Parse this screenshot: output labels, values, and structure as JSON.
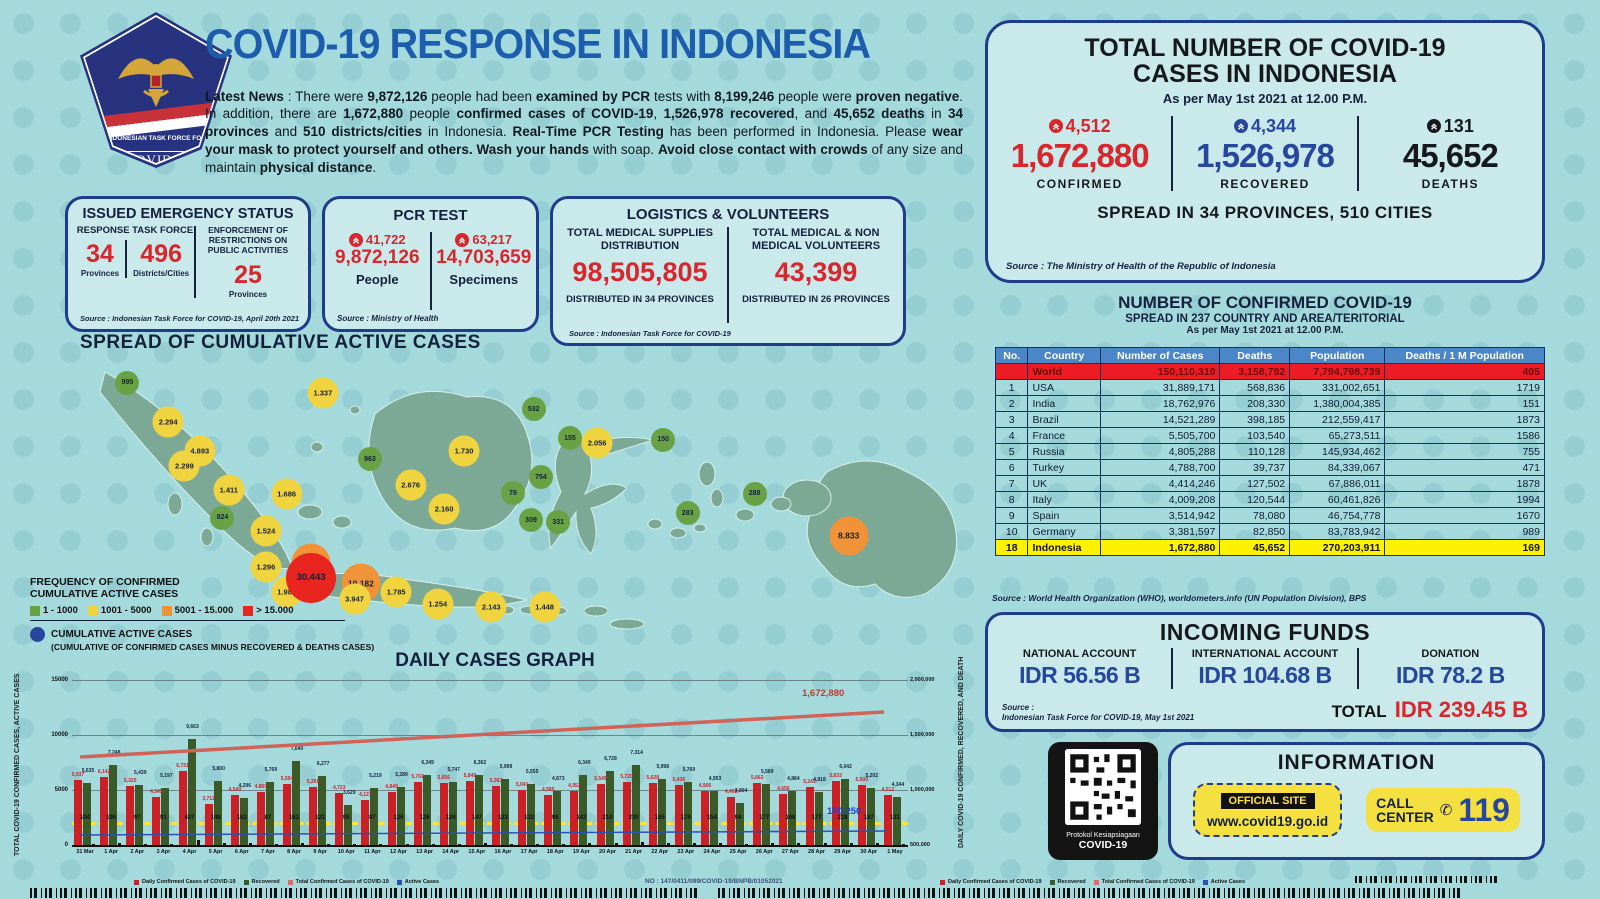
{
  "header": {
    "logo": {
      "org_line": "INDONESIAN TASK FORCE FOR",
      "covid": "COVID-19"
    },
    "title": "COVID-19 RESPONSE IN INDONESIA",
    "news": [
      {
        "t": "Latest News",
        "b": 1
      },
      {
        "t": " : There were ",
        "b": 0
      },
      {
        "t": "9,872,126",
        "b": 1
      },
      {
        "t": " people had been ",
        "b": 0
      },
      {
        "t": "examined by PCR",
        "b": 1
      },
      {
        "t": " tests with ",
        "b": 0
      },
      {
        "t": "8,199,246",
        "b": 1
      },
      {
        "t": " people were ",
        "b": 0
      },
      {
        "t": "proven negative",
        "b": 1
      },
      {
        "t": ". In addition, there are ",
        "b": 0
      },
      {
        "t": "1,672,880",
        "b": 1
      },
      {
        "t": " people ",
        "b": 0
      },
      {
        "t": "confirmed cases of COVID-19",
        "b": 1
      },
      {
        "t": ", ",
        "b": 0
      },
      {
        "t": "1,526,978",
        "b": 1
      },
      {
        "t": " ",
        "b": 0
      },
      {
        "t": "recovered",
        "b": 1
      },
      {
        "t": ", and ",
        "b": 0
      },
      {
        "t": "45,652 deaths",
        "b": 1
      },
      {
        "t": " in ",
        "b": 0
      },
      {
        "t": "34 provinces",
        "b": 1
      },
      {
        "t": " and ",
        "b": 0
      },
      {
        "t": "510 districts/cities",
        "b": 1
      },
      {
        "t": " in Indonesia. ",
        "b": 0
      },
      {
        "t": "Real-Time PCR Testing",
        "b": 1
      },
      {
        "t": " has been performed in Indonesia. Please ",
        "b": 0
      },
      {
        "t": "wear your mask to protect yourself and others. Wash your hands",
        "b": 1
      },
      {
        "t": " with soap. ",
        "b": 0
      },
      {
        "t": "Avoid close contact with crowds",
        "b": 1
      },
      {
        "t": " of any size and maintain ",
        "b": 0
      },
      {
        "t": "physical distance",
        "b": 1
      },
      {
        "t": ".",
        "b": 0
      }
    ]
  },
  "emergency_box": {
    "title": "ISSUED EMERGENCY STATUS",
    "left_header": "RESPONSE TASK FORCE",
    "stat1_value": "34",
    "stat1_label": "Provinces",
    "stat2_value": "496",
    "stat2_label": "Districts/Cities",
    "right_header": "ENFORCEMENT OF RESTRICTIONS ON PUBLIC ACTIVITIES",
    "stat3_value": "25",
    "stat3_label": "Provinces",
    "source": "Source : Indonesian Task Force for COVID-19, April 20th 2021"
  },
  "pcr_box": {
    "title": "PCR TEST",
    "left_delta": "41,722",
    "left_value": "9,872,126",
    "left_label": "People",
    "right_delta": "63,217",
    "right_value": "14,703,659",
    "right_label": "Specimens",
    "source": "Source : Ministry of Health"
  },
  "logistics_box": {
    "title": "LOGISTICS & VOLUNTEERS",
    "left_header": "TOTAL MEDICAL SUPPLIES DISTRIBUTION",
    "left_value": "98,505,805",
    "left_sub": "DISTRIBUTED IN 34 PROVINCES",
    "right_header": "TOTAL MEDICAL & NON MEDICAL VOLUNTEERS",
    "right_value": "43,399",
    "right_sub": "DISTRIBUTED IN 26 PROVINCES",
    "source": "Source : Indonesian Task Force for COVID-19"
  },
  "map": {
    "title": "SPREAD OF CUMULATIVE ACTIVE CASES",
    "legend_title": "FREQUENCY OF CONFIRMED CUMULATIVE ACTIVE CASES",
    "legend_items": [
      {
        "label": "1 - 1000",
        "color": "#69a244"
      },
      {
        "label": "1001 - 5000",
        "color": "#f0d43f"
      },
      {
        "label": "5001 - 15.000",
        "color": "#f09338"
      },
      {
        "label": "> 15.000",
        "color": "#e8251f"
      }
    ],
    "cumulative_label": "CUMULATIVE ACTIVE CASES",
    "cumulative_sub": "(CUMULATIVE OF CONFIRMED CASES MINUS RECOVERED & DEATHS CASES)",
    "bubbles": [
      {
        "v": "995",
        "x": 8.0,
        "y": 10.3,
        "c": "g"
      },
      {
        "v": "2.294",
        "x": 12.5,
        "y": 23.3,
        "c": "y"
      },
      {
        "v": "1.337",
        "x": 29.6,
        "y": 13.7,
        "c": "y"
      },
      {
        "v": "4.893",
        "x": 16.0,
        "y": 33.0,
        "c": "y"
      },
      {
        "v": "2.299",
        "x": 14.3,
        "y": 38.0,
        "c": "y"
      },
      {
        "v": "532",
        "x": 52.9,
        "y": 19.0,
        "c": "g"
      },
      {
        "v": "963",
        "x": 34.8,
        "y": 35.7,
        "c": "g"
      },
      {
        "v": "1.730",
        "x": 45.2,
        "y": 33.0,
        "c": "y"
      },
      {
        "v": "1.411",
        "x": 19.2,
        "y": 46.0,
        "c": "y"
      },
      {
        "v": "1.686",
        "x": 25.6,
        "y": 47.3,
        "c": "y"
      },
      {
        "v": "2.676",
        "x": 39.3,
        "y": 44.3,
        "c": "y"
      },
      {
        "v": "2.160",
        "x": 43.0,
        "y": 52.3,
        "c": "y"
      },
      {
        "v": "155",
        "x": 56.9,
        "y": 28.7,
        "c": "g"
      },
      {
        "v": "2.056",
        "x": 59.9,
        "y": 30.3,
        "c": "y"
      },
      {
        "v": "150",
        "x": 67.2,
        "y": 29.3,
        "c": "g"
      },
      {
        "v": "754",
        "x": 53.7,
        "y": 41.7,
        "c": "g"
      },
      {
        "v": "79",
        "x": 50.6,
        "y": 47.0,
        "c": "g"
      },
      {
        "v": "288",
        "x": 77.3,
        "y": 47.3,
        "c": "g"
      },
      {
        "v": "824",
        "x": 18.5,
        "y": 55.3,
        "c": "g"
      },
      {
        "v": "1.524",
        "x": 23.3,
        "y": 59.7,
        "c": "y"
      },
      {
        "v": "309",
        "x": 52.6,
        "y": 56.0,
        "c": "g"
      },
      {
        "v": "331",
        "x": 55.6,
        "y": 56.7,
        "c": "g"
      },
      {
        "v": "283",
        "x": 69.9,
        "y": 53.7,
        "c": "g"
      },
      {
        "v": "1.296",
        "x": 23.3,
        "y": 71.7,
        "c": "y"
      },
      {
        "v": "8.833",
        "x": 87.7,
        "y": 61.3,
        "c": "o"
      },
      {
        "v": "1.986",
        "x": 25.6,
        "y": 80.0,
        "c": "y"
      },
      {
        "v": "7.204",
        "x": 28.3,
        "y": 70.3,
        "c": "o"
      },
      {
        "v": "30.443",
        "x": 28.3,
        "y": 75.3,
        "c": "r"
      },
      {
        "v": "10.182",
        "x": 33.8,
        "y": 77.0,
        "c": "o"
      },
      {
        "v": "3.947",
        "x": 33.1,
        "y": 82.3,
        "c": "y"
      },
      {
        "v": "1.785",
        "x": 37.7,
        "y": 80.0,
        "c": "y"
      },
      {
        "v": "1.254",
        "x": 42.3,
        "y": 84.0,
        "c": "y"
      },
      {
        "v": "2.143",
        "x": 48.2,
        "y": 85.0,
        "c": "y"
      },
      {
        "v": "1.448",
        "x": 54.1,
        "y": 85.0,
        "c": "y"
      }
    ]
  },
  "chart_data": {
    "type": "bar",
    "title": "DAILY CASES GRAPH",
    "dates": [
      "31 Mar",
      "1 Apr",
      "2 Apr",
      "3 Apr",
      "4 Apr",
      "5 Apr",
      "6 Apr",
      "7 Apr",
      "8 Apr",
      "9 Apr",
      "10 Apr",
      "11 Apr",
      "12 Apr",
      "13 Apr",
      "14 Apr",
      "15 Apr",
      "16 Apr",
      "17 Apr",
      "18 Apr",
      "19 Apr",
      "20 Apr",
      "21 Apr",
      "22 Apr",
      "23 Apr",
      "24 Apr",
      "25 Apr",
      "26 Apr",
      "27 Apr",
      "28 Apr",
      "29 Apr",
      "30 Apr",
      "1 May"
    ],
    "series": [
      {
        "name": "Daily Confirmed Cases of COVID-19",
        "color": "#cc2027",
        "values": [
          5937,
          6142,
          5325,
          4345,
          6731,
          3712,
          4549,
          4860,
          5504,
          5265,
          4723,
          4127,
          4849,
          5702,
          5656,
          5849,
          5363,
          5041,
          4585,
          4952,
          5549,
          5720,
          5628,
          5436,
          4906,
          4402,
          5662,
          4656,
          5241,
          5833,
          5500,
          4512
        ]
      },
      {
        "name": "Recovered",
        "color": "#3a5a28",
        "values": [
          5635,
          7248,
          5439,
          5197,
          9663,
          5800,
          4296,
          5769,
          7640,
          6277,
          3629,
          5219,
          5289,
          6349,
          5747,
          6362,
          5999,
          5555,
          4873,
          6349,
          6728,
          7314,
          5998,
          5769,
          4953,
          3804,
          5589,
          4884,
          4818,
          6042,
          5202,
          4344
        ]
      },
      {
        "name": "Deaths",
        "color": "#111111",
        "values": [
          104,
          196,
          97,
          91,
          427,
          146,
          162,
          87,
          163,
          121,
          95,
          87,
          126,
          126,
          124,
          147,
          123,
          132,
          96,
          143,
          210,
          230,
          165,
          174,
          154,
          94,
          177,
          168,
          177,
          218,
          187,
          131
        ]
      }
    ],
    "left_ticks": [
      "15000",
      "10000",
      "5000",
      "0"
    ],
    "right_ticks": [
      "2,000,000",
      "1,500,000",
      "1,000,000",
      "500,000"
    ],
    "ylim": [
      0,
      15000
    ],
    "cumulative_line_label": "1,672,880",
    "active_line_label": "100,250",
    "left_axis_caption": "TOTAL COVID-19 CONFIRMED CASES, ACTIVE CASES",
    "right_axis_caption": "DAILY COVID-19 CONFIRMED, RECOVERED, AND DEATH"
  },
  "totals": {
    "title_line1": "TOTAL NUMBER OF COVID-19",
    "title_line2": "CASES IN INDONESIA",
    "subtitle": "As per May 1st 2021 at 12.00 P.M.",
    "stats": [
      {
        "delta": "4,512",
        "value": "1,672,880",
        "label": "CONFIRMED",
        "color": "#d8262c"
      },
      {
        "delta": "4,344",
        "value": "1,526,978",
        "label": "RECOVERED",
        "color": "#27479e"
      },
      {
        "delta": "131",
        "value": "45,652",
        "label": "DEATHS",
        "color": "#16181d"
      }
    ],
    "spread": "SPREAD IN 34 PROVINCES, 510 CITIES",
    "source": "Source : The Ministry of Health of the Republic of Indonesia"
  },
  "world_table": {
    "title": "NUMBER OF CONFIRMED COVID-19",
    "subtitle": "SPREAD IN 237 COUNTRY AND AREA/TERITORIAL",
    "asof": "As per May 1st 2021 at 12.00 P.M.",
    "headers": [
      "No.",
      "Country",
      "Number of Cases",
      "Deaths",
      "Population",
      "Deaths / 1 M Population"
    ],
    "rows": [
      {
        "no": "",
        "country": "World",
        "cases": "150,110,310",
        "deaths": "3,158,792",
        "population": "7,794,798,739",
        "dpm": "405",
        "cls": "world"
      },
      {
        "no": "1",
        "country": "USA",
        "cases": "31,889,171",
        "deaths": "568,836",
        "population": "331,002,651",
        "dpm": "1719",
        "cls": ""
      },
      {
        "no": "2",
        "country": "India",
        "cases": "18,762,976",
        "deaths": "208,330",
        "population": "1,380,004,385",
        "dpm": "151",
        "cls": ""
      },
      {
        "no": "3",
        "country": "Brazil",
        "cases": "14,521,289",
        "deaths": "398,185",
        "population": "212,559,417",
        "dpm": "1873",
        "cls": ""
      },
      {
        "no": "4",
        "country": "France",
        "cases": "5,505,700",
        "deaths": "103,540",
        "population": "65,273,511",
        "dpm": "1586",
        "cls": ""
      },
      {
        "no": "5",
        "country": "Russia",
        "cases": "4,805,288",
        "deaths": "110,128",
        "population": "145,934,462",
        "dpm": "755",
        "cls": ""
      },
      {
        "no": "6",
        "country": "Turkey",
        "cases": "4,788,700",
        "deaths": "39,737",
        "population": "84,339,067",
        "dpm": "471",
        "cls": ""
      },
      {
        "no": "7",
        "country": "UK",
        "cases": "4,414,246",
        "deaths": "127,502",
        "population": "67,886,011",
        "dpm": "1878",
        "cls": ""
      },
      {
        "no": "8",
        "country": "Italy",
        "cases": "4,009,208",
        "deaths": "120,544",
        "population": "60,461,826",
        "dpm": "1994",
        "cls": ""
      },
      {
        "no": "9",
        "country": "Spain",
        "cases": "3,514,942",
        "deaths": "78,080",
        "population": "46,754,778",
        "dpm": "1670",
        "cls": ""
      },
      {
        "no": "10",
        "country": "Germany",
        "cases": "3,381,597",
        "deaths": "82,850",
        "population": "83,783,942",
        "dpm": "989",
        "cls": ""
      },
      {
        "no": "18",
        "country": "Indonesia",
        "cases": "1,672,880",
        "deaths": "45,652",
        "population": "270,203,911",
        "dpm": "169",
        "cls": "idn"
      }
    ],
    "source": "Source : World Health Organization (WHO), worldometers.info (UN Population Division), BPS"
  },
  "funds": {
    "title": "INCOMING FUNDS",
    "columns": [
      {
        "label": "NATIONAL ACCOUNT",
        "value": "IDR 56.56 B"
      },
      {
        "label": "INTERNATIONAL ACCOUNT",
        "value": "IDR 104.68 B"
      },
      {
        "label": "DONATION",
        "value": "IDR 78.2 B"
      }
    ],
    "source_line1": "Source :",
    "source_line2": "Indonesian Task Force for COVID-19, May 1st 2021",
    "total_label": "TOTAL",
    "total_value": "IDR 239.45 B"
  },
  "info_box": {
    "qr_label1": "Protokol Kesiapsiagaan",
    "qr_label2": "COVID-19",
    "title": "INFORMATION",
    "official_site": "OFFICIAL SITE",
    "url": "www.covid19.go.id",
    "call_word1": "CALL",
    "call_word2": "CENTER",
    "call_number": "119"
  },
  "footer": {
    "doc_no": "NO : 147/0411/099/COVID-19/BNPB/01052021",
    "graph_legend": [
      {
        "label": "Daily Confirmed Cases of COVID-19",
        "color": "#cc2027"
      },
      {
        "label": "Recovered",
        "color": "#3a5a28"
      },
      {
        "label": "Total Confirmed Cases of COVID-19",
        "color": "#e06a6a"
      },
      {
        "label": "Active Cases",
        "color": "#2a52b0"
      }
    ]
  }
}
